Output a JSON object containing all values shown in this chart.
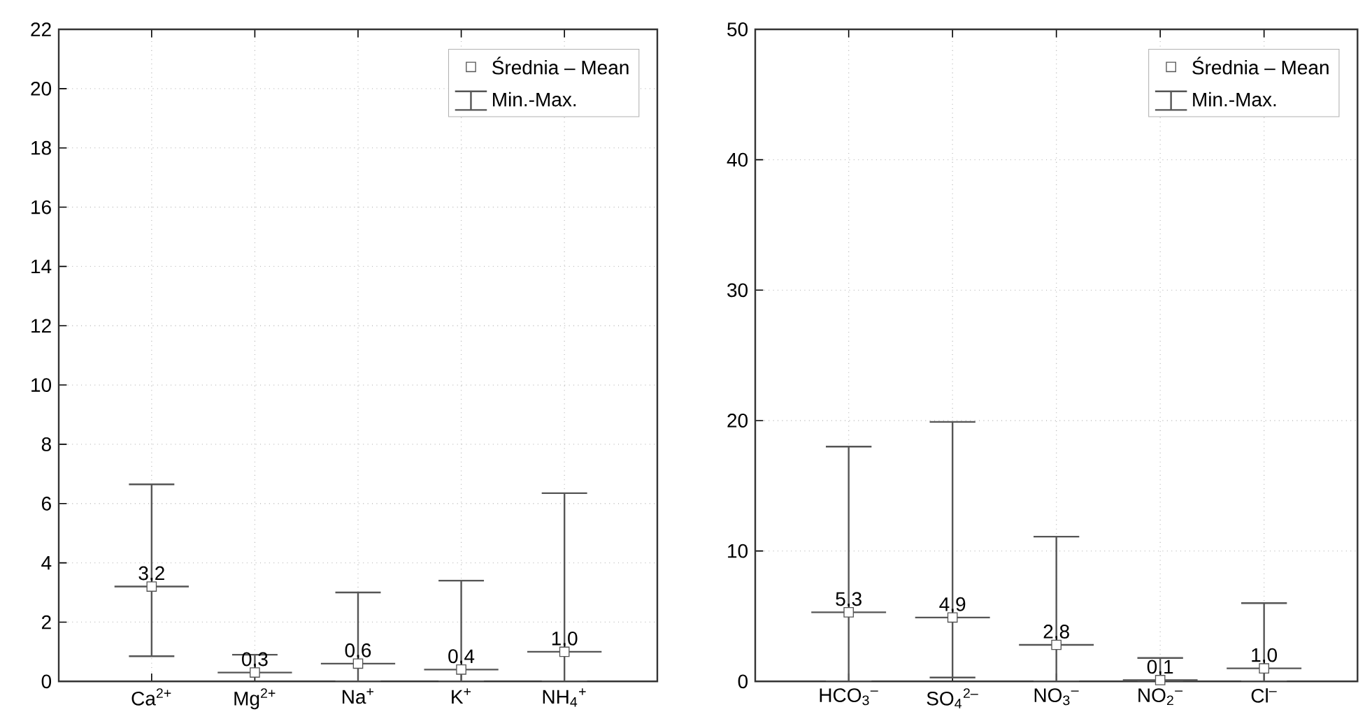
{
  "chart_data": [
    {
      "type": "scatter",
      "categories": [
        "Ca$^{2+}$",
        "Mg$^{2+}$",
        "Na$^{+}$",
        "K$^{+}$",
        "NH$_{4}$$^{+}$"
      ],
      "ylim": [
        0,
        22
      ],
      "yticks": [
        0,
        2,
        4,
        6,
        8,
        10,
        12,
        14,
        16,
        18,
        20,
        22
      ],
      "grid": true,
      "legend": "top right",
      "annotations": [
        "Min.-Max."
      ],
      "series": [
        {
          "name": "Średnia – Mean",
          "color": "#555555",
          "marker": "square",
          "values": [
            3.2,
            0.3,
            0.6,
            0.4,
            1.0
          ],
          "value_labels": [
            "3,2",
            "0,3",
            "0,6",
            "0,4",
            "1,0"
          ],
          "errors": [
            [
              0.85,
              6.65
            ],
            [
              0.3,
              0.9
            ],
            [
              0,
              3.0
            ],
            [
              0,
              3.4
            ],
            [
              0,
              6.35
            ]
          ]
        }
      ]
    },
    {
      "type": "scatter",
      "categories": [
        "HCO$_{3}$$^{–}$",
        "SO$_{4}$$^{2–}$",
        "NO$_{3}$$^{–}$",
        "NO$_{2}$$^{–}$",
        "Cl$^{–}$"
      ],
      "ylim": [
        0,
        50
      ],
      "yticks": [
        0,
        10,
        20,
        30,
        40,
        50
      ],
      "grid": true,
      "legend": "top right",
      "annotations": [
        "Min.-Max."
      ],
      "series": [
        {
          "name": "Średnia – Mean",
          "color": "#555555",
          "marker": "square",
          "values": [
            5.3,
            4.9,
            2.8,
            0.1,
            1.0
          ],
          "value_labels": [
            "5,3",
            "4,9",
            "2,8",
            "0,1",
            "1,0"
          ],
          "errors": [
            [
              0,
              18.0
            ],
            [
              0.3,
              19.9
            ],
            [
              0,
              11.1
            ],
            [
              0,
              1.8
            ],
            [
              0,
              6.0
            ]
          ]
        }
      ]
    }
  ]
}
